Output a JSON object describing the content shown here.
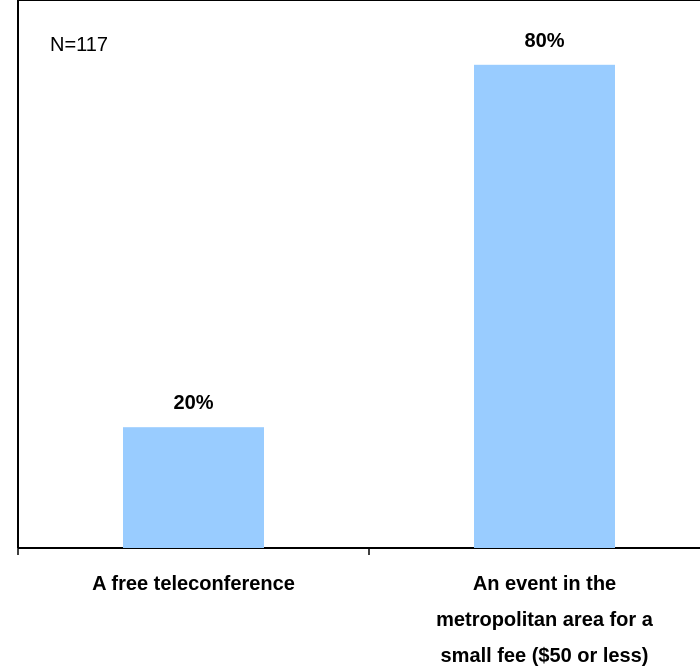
{
  "chart_data": {
    "type": "bar",
    "annotation": "N=117",
    "categories": [
      [
        "A free teleconference"
      ],
      [
        "An event in the",
        "metropolitan area for a",
        "small fee ($50 or less)"
      ]
    ],
    "values": [
      20,
      80
    ],
    "value_labels": [
      "20%",
      "80%"
    ],
    "ylim": [
      0,
      100
    ],
    "grid": false,
    "legend": "none",
    "colors": {
      "bar": "#99CCFF",
      "axis": "#000000",
      "text": "#000000"
    }
  }
}
